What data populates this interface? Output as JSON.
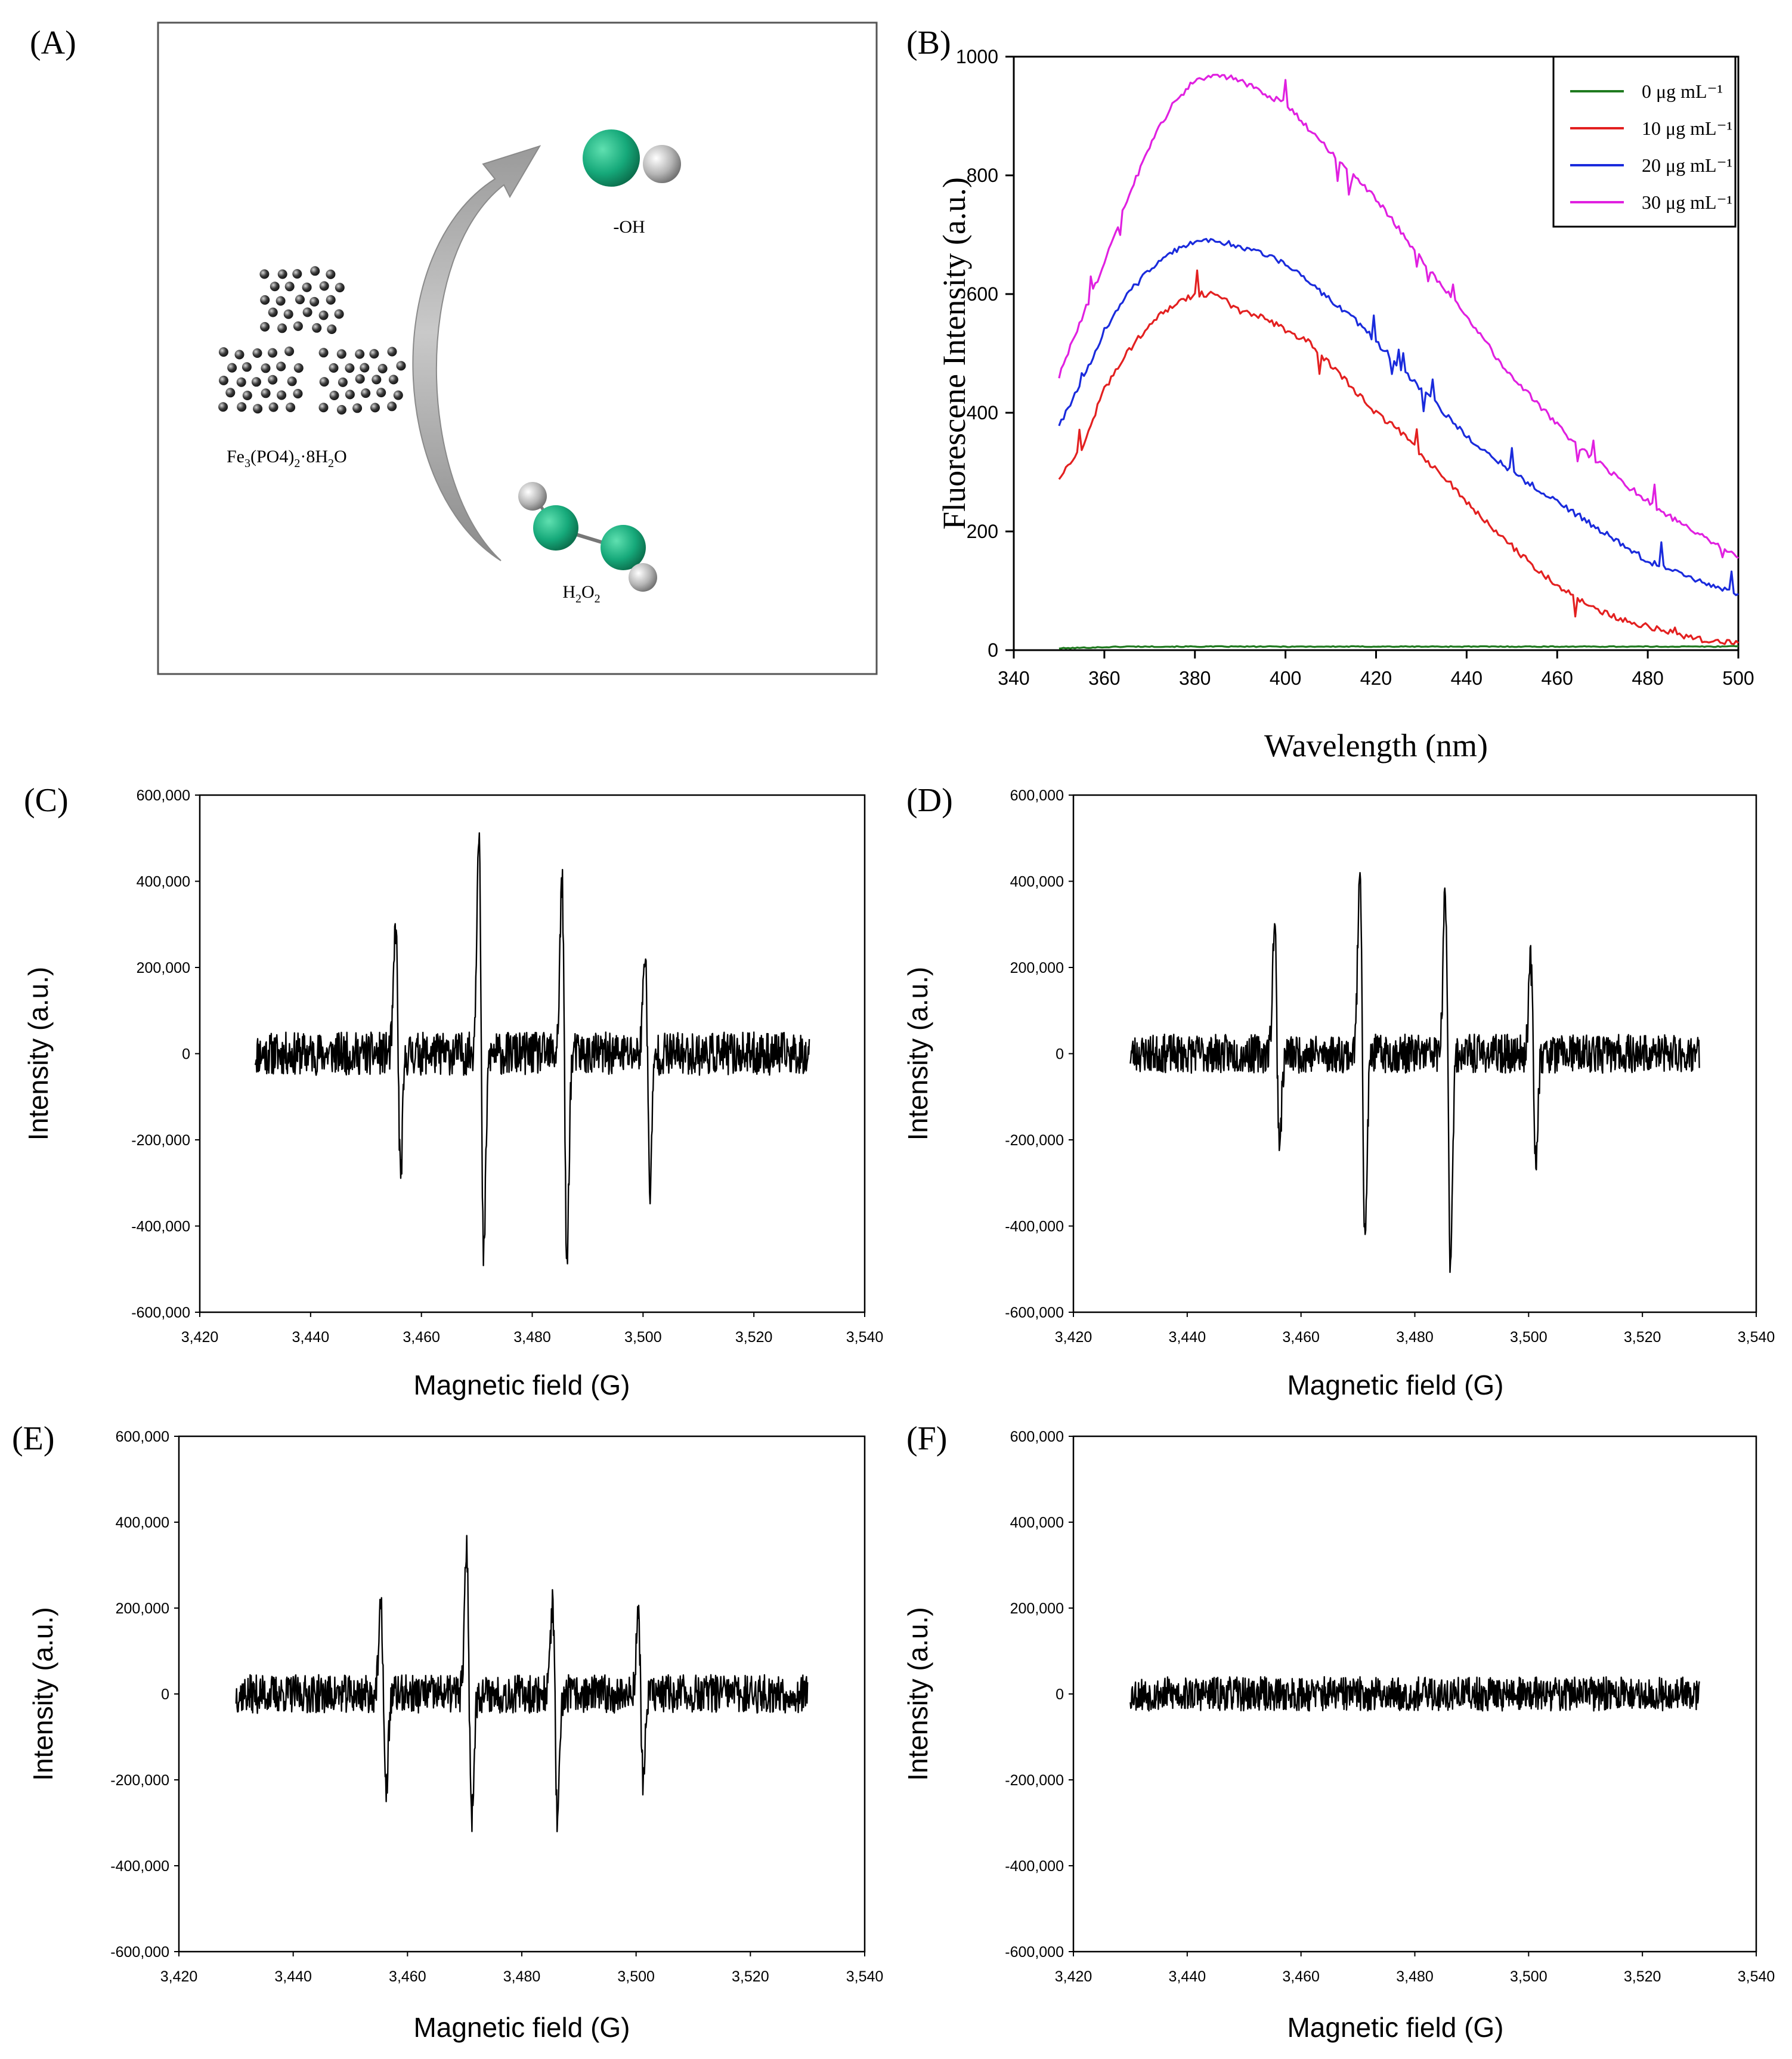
{
  "panel_labels": {
    "a": "(A)",
    "b": "(B)",
    "c": "(C)",
    "d": "(D)",
    "e": "(E)",
    "f": "(F)"
  },
  "schematic": {
    "compound_label": "Fe3(PO4)2·8H2O",
    "product_label": "-OH",
    "reactant_label": "H2O2",
    "colors": {
      "oxygen_atom": "#16a97a",
      "hydrogen_atom": "#b5b5b5",
      "particle": "#3a3a3a",
      "arrow": "#8a8a8a"
    }
  },
  "chart_data": [
    {
      "id": "B",
      "type": "line",
      "xlabel": "Wavelength (nm)",
      "ylabel": "Fluorescene Intensity (a.u.)",
      "xlim": [
        340,
        500
      ],
      "ylim": [
        0,
        1000
      ],
      "xticks": [
        340,
        360,
        380,
        400,
        420,
        440,
        460,
        480,
        500
      ],
      "yticks": [
        0,
        200,
        400,
        600,
        800,
        1000
      ],
      "legend_position": "top-right",
      "grid": false,
      "x": [
        350,
        355,
        360,
        365,
        370,
        375,
        380,
        385,
        390,
        395,
        400,
        405,
        410,
        415,
        420,
        425,
        430,
        435,
        440,
        445,
        450,
        455,
        460,
        465,
        470,
        475,
        480,
        485,
        490,
        495,
        500
      ],
      "series": [
        {
          "name": "0 μg mL⁻¹",
          "color": "#1f7a1f",
          "values": [
            3,
            4,
            5,
            6,
            6,
            6,
            6,
            6,
            6,
            6,
            6,
            6,
            6,
            6,
            6,
            6,
            6,
            6,
            6,
            6,
            6,
            6,
            6,
            6,
            6,
            6,
            6,
            6,
            6,
            6,
            7
          ]
        },
        {
          "name": "10 μg mL⁻¹",
          "color": "#e32020",
          "values": [
            290,
            340,
            440,
            500,
            550,
            580,
            600,
            600,
            570,
            560,
            540,
            520,
            480,
            440,
            400,
            370,
            330,
            290,
            250,
            210,
            175,
            140,
            110,
            85,
            65,
            50,
            40,
            30,
            20,
            15,
            12
          ]
        },
        {
          "name": "20 μg mL⁻¹",
          "color": "#1a2bdc",
          "values": [
            380,
            450,
            540,
            600,
            640,
            670,
            690,
            690,
            680,
            670,
            650,
            620,
            590,
            560,
            520,
            480,
            440,
            400,
            360,
            330,
            300,
            275,
            250,
            225,
            200,
            175,
            150,
            135,
            120,
            105,
            95
          ]
        },
        {
          "name": "30 μg mL⁻¹",
          "color": "#e020e0",
          "values": [
            460,
            560,
            650,
            760,
            850,
            920,
            960,
            970,
            960,
            940,
            920,
            880,
            840,
            800,
            760,
            710,
            660,
            610,
            560,
            510,
            460,
            420,
            380,
            340,
            310,
            280,
            250,
            225,
            200,
            180,
            155
          ]
        }
      ]
    },
    {
      "id": "C",
      "type": "line",
      "xlabel": "Magnetic field  (G)",
      "ylabel": "Intensity (a.u.)",
      "xlim": [
        3420,
        3540
      ],
      "ylim": [
        -600000,
        600000
      ],
      "xticks": [
        3420,
        3440,
        3460,
        3480,
        3500,
        3520,
        3540
      ],
      "yticks": [
        -600000,
        -400000,
        -200000,
        0,
        200000,
        400000,
        600000
      ],
      "xtick_labels": [
        "3,420",
        "3,440",
        "3,460",
        "3,480",
        "3,500",
        "3,520",
        "3,540"
      ],
      "ytick_labels": [
        "-600,000",
        "-400,000",
        "-200,000",
        "0",
        "200,000",
        "400,000",
        "600,000"
      ],
      "x_range": [
        3430,
        3530
      ],
      "noise_amplitude": 50000,
      "peaks": [
        {
          "field": 3455.8,
          "max": 300000,
          "min": -280000
        },
        {
          "field": 3470.8,
          "max": 535000,
          "min": -475000
        },
        {
          "field": 3485.8,
          "max": 400000,
          "min": -485000
        },
        {
          "field": 3500.8,
          "max": 245000,
          "min": -310000
        }
      ]
    },
    {
      "id": "D",
      "type": "line",
      "xlabel": "Magnetic field  (G)",
      "ylabel": "Intensity (a.u.)",
      "xlim": [
        3420,
        3540
      ],
      "ylim": [
        -600000,
        600000
      ],
      "xticks": [
        3420,
        3440,
        3460,
        3480,
        3500,
        3520,
        3540
      ],
      "yticks": [
        -600000,
        -400000,
        -200000,
        0,
        200000,
        400000,
        600000
      ],
      "xtick_labels": [
        "3,420",
        "3,440",
        "3,460",
        "3,480",
        "3,500",
        "3,520",
        "3,540"
      ],
      "ytick_labels": [
        "-600,000",
        "-400,000",
        "-200,000",
        "0",
        "200,000",
        "400,000",
        "600,000"
      ],
      "x_range": [
        3430,
        3530
      ],
      "noise_amplitude": 45000,
      "peaks": [
        {
          "field": 3455.8,
          "max": 310000,
          "min": -200000
        },
        {
          "field": 3470.8,
          "max": 450000,
          "min": -440000
        },
        {
          "field": 3485.8,
          "max": 375000,
          "min": -475000
        },
        {
          "field": 3500.8,
          "max": 215000,
          "min": -245000
        }
      ]
    },
    {
      "id": "E",
      "type": "line",
      "xlabel": "Magnetic field  (G)",
      "ylabel": "Intensity (a.u.)",
      "xlim": [
        3420,
        3540
      ],
      "ylim": [
        -600000,
        600000
      ],
      "xticks": [
        3420,
        3440,
        3460,
        3480,
        3500,
        3520,
        3540
      ],
      "yticks": [
        -600000,
        -400000,
        -200000,
        0,
        200000,
        400000,
        600000
      ],
      "xtick_labels": [
        "3,420",
        "3,440",
        "3,460",
        "3,480",
        "3,500",
        "3,520",
        "3,540"
      ],
      "ytick_labels": [
        "-600,000",
        "-400,000",
        "-200,000",
        "0",
        "200,000",
        "400,000",
        "600,000"
      ],
      "x_range": [
        3430,
        3530
      ],
      "noise_amplitude": 45000,
      "peaks": [
        {
          "field": 3455.8,
          "max": 200000,
          "min": -235000
        },
        {
          "field": 3470.8,
          "max": 340000,
          "min": -285000
        },
        {
          "field": 3485.8,
          "max": 210000,
          "min": -310000
        },
        {
          "field": 3500.8,
          "max": 180000,
          "min": -195000
        }
      ]
    },
    {
      "id": "F",
      "type": "line",
      "xlabel": "Magnetic field  (G)",
      "ylabel": "Intensity (a.u.)",
      "xlim": [
        3420,
        3540
      ],
      "ylim": [
        -600000,
        600000
      ],
      "xticks": [
        3420,
        3440,
        3460,
        3480,
        3500,
        3520,
        3540
      ],
      "yticks": [
        -600000,
        -400000,
        -200000,
        0,
        200000,
        400000,
        600000
      ],
      "xtick_labels": [
        "3,420",
        "3,440",
        "3,460",
        "3,480",
        "3,500",
        "3,520",
        "3,540"
      ],
      "ytick_labels": [
        "-600,000",
        "-400,000",
        "-200,000",
        "0",
        "200,000",
        "400,000",
        "600,000"
      ],
      "x_range": [
        3430,
        3530
      ],
      "noise_amplitude": 40000,
      "peaks": []
    }
  ]
}
